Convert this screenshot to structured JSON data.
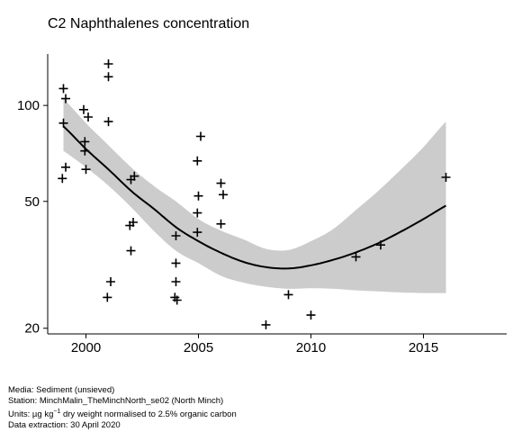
{
  "chart_data": {
    "type": "scatter",
    "title": "C2 Naphthalenes concentration",
    "xlabel": "",
    "ylabel": "",
    "y_scale": "log",
    "xlim": [
      1998.3,
      2018.7
    ],
    "ylim": [
      19.2,
      145
    ],
    "x_ticks": [
      2000,
      2005,
      2010,
      2015
    ],
    "x_tick_labels": [
      "2000",
      "2005",
      "2010",
      "2015"
    ],
    "y_ticks": [
      20,
      50,
      100
    ],
    "y_tick_labels": [
      "20",
      "50",
      "100"
    ],
    "grid": false,
    "marker": "plus",
    "points": [
      {
        "x": 1999.0,
        "y": 113
      },
      {
        "x": 1999.1,
        "y": 105
      },
      {
        "x": 1999.0,
        "y": 88
      },
      {
        "x": 1999.1,
        "y": 64
      },
      {
        "x": 1998.95,
        "y": 59
      },
      {
        "x": 1999.9,
        "y": 97
      },
      {
        "x": 2000.1,
        "y": 92
      },
      {
        "x": 1999.95,
        "y": 77
      },
      {
        "x": 1999.95,
        "y": 72
      },
      {
        "x": 2000.0,
        "y": 63
      },
      {
        "x": 2001.0,
        "y": 135
      },
      {
        "x": 2001.0,
        "y": 123
      },
      {
        "x": 2001.0,
        "y": 89
      },
      {
        "x": 2001.1,
        "y": 28
      },
      {
        "x": 2000.95,
        "y": 25
      },
      {
        "x": 2002.0,
        "y": 58.5
      },
      {
        "x": 2002.15,
        "y": 60
      },
      {
        "x": 2002.1,
        "y": 43
      },
      {
        "x": 2001.95,
        "y": 42
      },
      {
        "x": 2002.0,
        "y": 35
      },
      {
        "x": 2004.0,
        "y": 39
      },
      {
        "x": 2004.0,
        "y": 32
      },
      {
        "x": 2004.0,
        "y": 28
      },
      {
        "x": 2003.95,
        "y": 25
      },
      {
        "x": 2004.05,
        "y": 24.5
      },
      {
        "x": 2005.1,
        "y": 80
      },
      {
        "x": 2004.95,
        "y": 67
      },
      {
        "x": 2005.0,
        "y": 52
      },
      {
        "x": 2004.95,
        "y": 46
      },
      {
        "x": 2004.95,
        "y": 40
      },
      {
        "x": 2006.0,
        "y": 57
      },
      {
        "x": 2006.1,
        "y": 52.5
      },
      {
        "x": 2006.0,
        "y": 42.5
      },
      {
        "x": 2008.0,
        "y": 20.5
      },
      {
        "x": 2009.0,
        "y": 25.5
      },
      {
        "x": 2010.0,
        "y": 22
      },
      {
        "x": 2012.0,
        "y": 33.5
      },
      {
        "x": 2013.1,
        "y": 36.5
      },
      {
        "x": 2016.0,
        "y": 59.5
      }
    ],
    "fit": {
      "x": [
        1999.0,
        2000.0,
        2001.0,
        2002.0,
        2003.0,
        2004.0,
        2005.0,
        2006.0,
        2007.0,
        2008.0,
        2009.0,
        2010.0,
        2011.0,
        2012.0,
        2013.0,
        2014.0,
        2015.0,
        2016.0
      ],
      "y": [
        86,
        73,
        63,
        54,
        47.5,
        41.5,
        37.5,
        34.5,
        32.3,
        31.1,
        30.8,
        31.5,
        32.8,
        34.6,
        37.0,
        40.2,
        44.0,
        48.5
      ],
      "lower": [
        72,
        64,
        56,
        48,
        40.5,
        35,
        32,
        29.2,
        27.8,
        27.0,
        26.6,
        26.7,
        26.6,
        26.3,
        26.1,
        25.9,
        25.8,
        25.8
      ],
      "upper": [
        105,
        88,
        75,
        64,
        56,
        50,
        44,
        40.5,
        38,
        35.5,
        35.2,
        37.5,
        41,
        47,
        54,
        63,
        74,
        89
      ]
    },
    "colors": {
      "ribbon": "#cccccc",
      "line": "#000000",
      "marker": "#000000",
      "axis": "#000000"
    }
  },
  "footer": {
    "media": "Media: Sediment (unsieved)",
    "station": "Station: MinchMalin_TheMinchNorth_se02 (North Minch)",
    "units_prefix": "Units: µg kg",
    "units_sup": "−1",
    "units_suffix": " dry weight normalised to 2.5% organic carbon",
    "extraction": "Data extraction: 30 April 2020"
  }
}
